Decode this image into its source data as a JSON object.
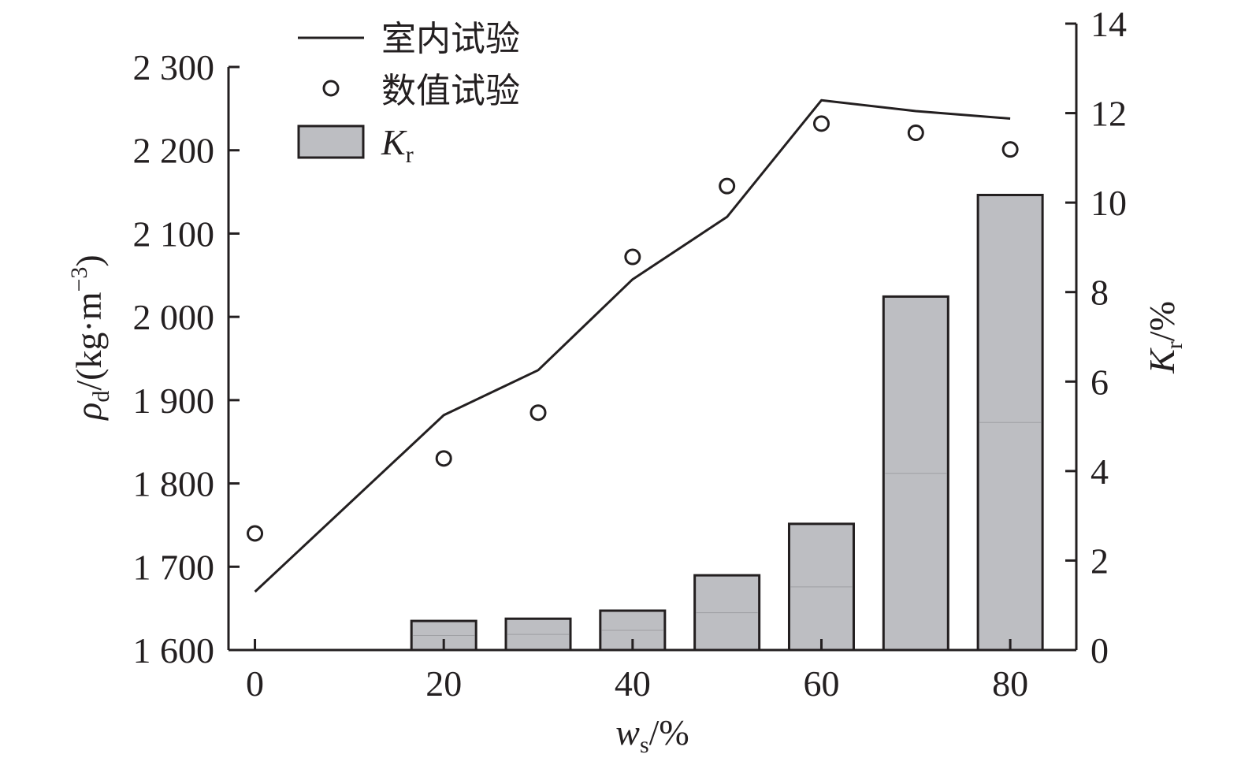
{
  "chart_data": {
    "type": "bar",
    "x_axis": {
      "label_main": "w",
      "label_sub": "s",
      "label_unit": "/%",
      "ticks": [
        "0",
        "20",
        "40",
        "60",
        "80"
      ],
      "tick_values": [
        0,
        20,
        40,
        60,
        80
      ],
      "range": [
        -2.8,
        87
      ]
    },
    "y_left": {
      "label_main": "ρ",
      "label_sub": "d",
      "label_unit": "/(kg·m",
      "label_sup": "−3",
      "label_close": ")",
      "ticks": [
        "1 600",
        "1 700",
        "1 800",
        "1 900",
        "2 000",
        "2 100",
        "2 200",
        "2 300"
      ],
      "tick_values": [
        1600,
        1700,
        1800,
        1900,
        2000,
        2100,
        2200,
        2300
      ],
      "range": [
        1600,
        2300
      ]
    },
    "y_right": {
      "label_main": "K",
      "label_sub": "r",
      "label_unit": "/%",
      "ticks": [
        "0",
        "2",
        "4",
        "6",
        "8",
        "10",
        "12",
        "14"
      ],
      "tick_values": [
        0,
        2,
        4,
        6,
        8,
        10,
        12,
        14
      ],
      "range": [
        0,
        14
      ]
    },
    "series": [
      {
        "name": "室内试验",
        "kind": "line",
        "axis": "left",
        "x": [
          0,
          20,
          30,
          40,
          50,
          60,
          70,
          80
        ],
        "values": [
          1670,
          1882,
          1936,
          2045,
          2120,
          2260,
          2247,
          2238
        ]
      },
      {
        "name": "数值试验",
        "kind": "scatter",
        "axis": "left",
        "x": [
          0,
          20,
          30,
          40,
          50,
          60,
          70,
          80
        ],
        "values": [
          1740,
          1830,
          1885,
          2072,
          2157,
          2232,
          2221,
          2201
        ]
      },
      {
        "name": "K",
        "name_sub": "r",
        "kind": "bar",
        "axis": "right",
        "x": [
          20,
          30,
          40,
          50,
          60,
          70,
          80
        ],
        "values": [
          0.65,
          0.7,
          0.88,
          1.67,
          2.82,
          7.9,
          10.17
        ]
      }
    ],
    "legend": {
      "position": "top-left",
      "entries": [
        "室内试验",
        "数值试验",
        "K"
      ]
    },
    "colors": {
      "bar_fill": "#bdbec2",
      "bar_stroke": "#231f20",
      "line": "#231f20",
      "axis": "#231f20"
    },
    "grid": false
  }
}
